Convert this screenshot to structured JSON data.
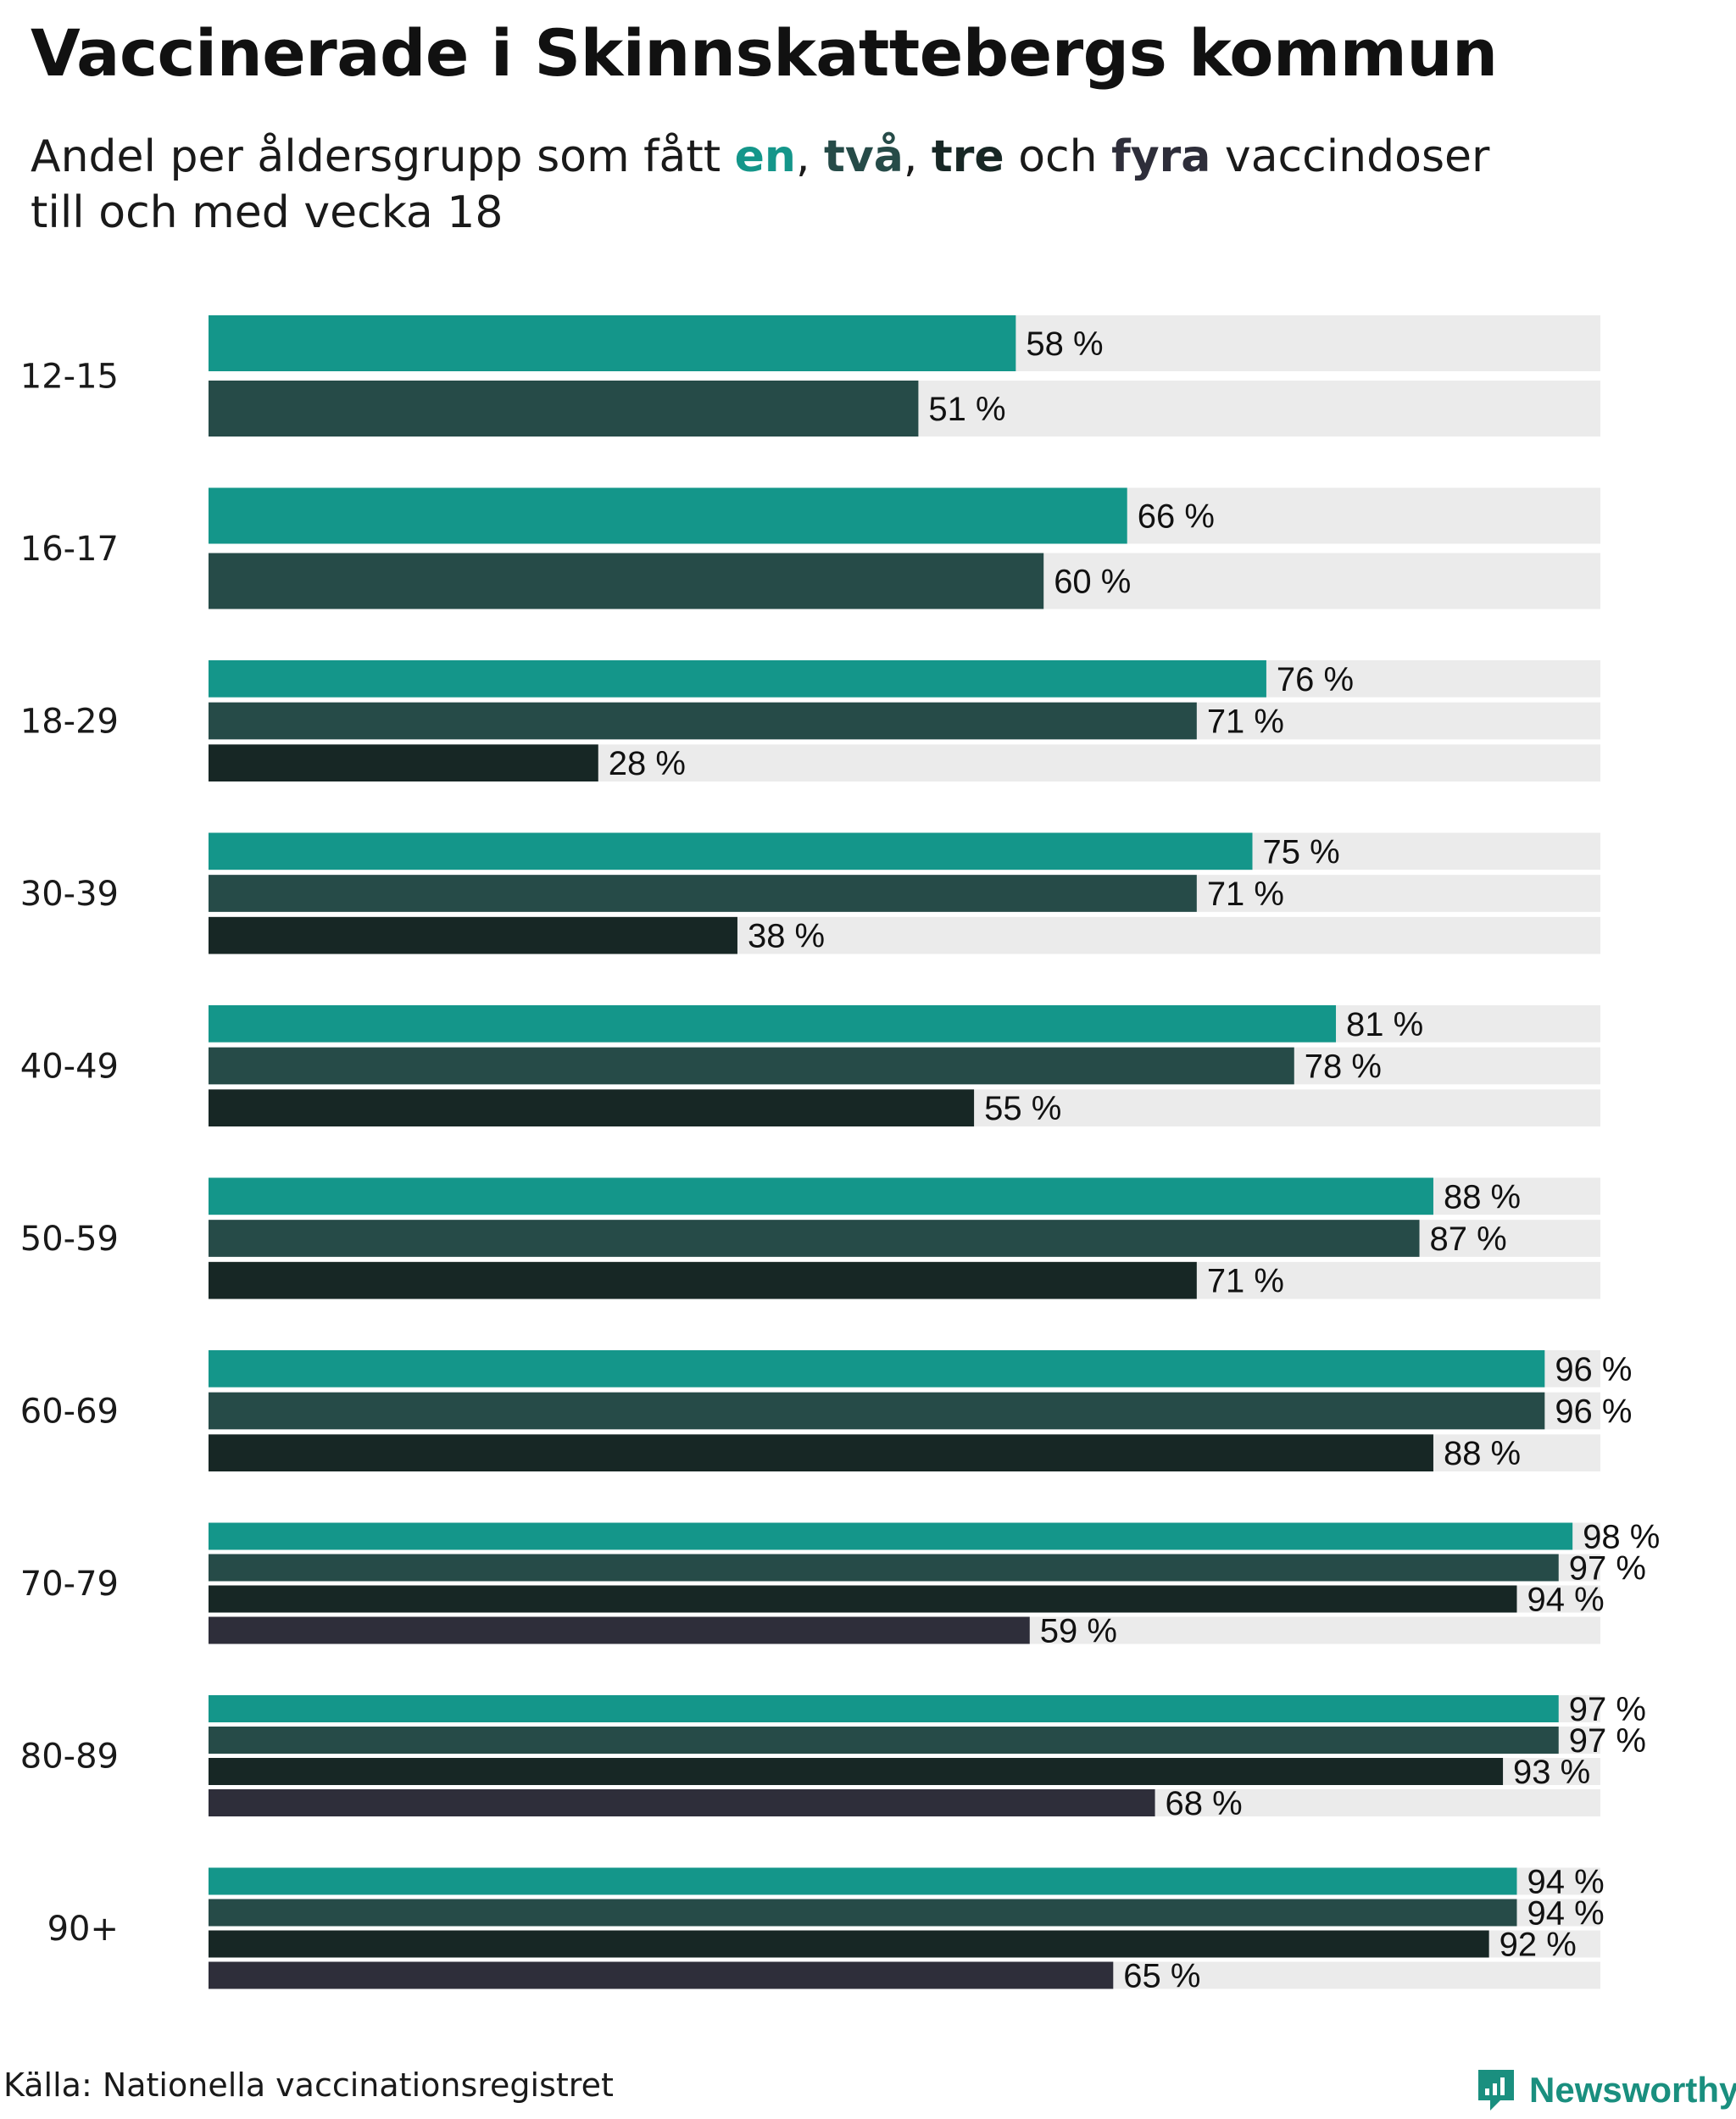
{
  "title": "Vaccinerade i Skinnskattebergs kommun",
  "subtitle": {
    "before": "Andel per åldersgrupp som fått ",
    "k1": "en",
    "sep1": ", ",
    "k2": "två",
    "sep2": ", ",
    "k3": "tre",
    "sep3": " och ",
    "k4": "fyra",
    "after": " vaccindoser",
    "line2": "till och med vecka 18"
  },
  "source": "Källa: Nationella vaccinationsregistret",
  "brand": "Newsworthy",
  "colors": {
    "one_dose": "#14968a",
    "two_doses": "#264b48",
    "three_doses": "#172725",
    "four_doses": "#2e2e3a",
    "track": "#ebebeb"
  },
  "chart_data": {
    "type": "bar",
    "orientation": "horizontal",
    "unit": "%",
    "xlim": [
      0,
      100
    ],
    "grid": false,
    "categories": [
      "12-15",
      "16-17",
      "18-29",
      "30-39",
      "40-49",
      "50-59",
      "60-69",
      "70-79",
      "80-89",
      "90+"
    ],
    "series": [
      {
        "name": "en",
        "values": [
          58,
          66,
          76,
          75,
          81,
          88,
          96,
          98,
          97,
          94
        ]
      },
      {
        "name": "två",
        "values": [
          51,
          60,
          71,
          71,
          78,
          87,
          96,
          97,
          97,
          94
        ]
      },
      {
        "name": "tre",
        "values": [
          null,
          null,
          28,
          38,
          55,
          71,
          88,
          94,
          93,
          92
        ]
      },
      {
        "name": "fyra",
        "values": [
          null,
          null,
          null,
          null,
          null,
          null,
          null,
          59,
          68,
          65
        ]
      }
    ]
  }
}
